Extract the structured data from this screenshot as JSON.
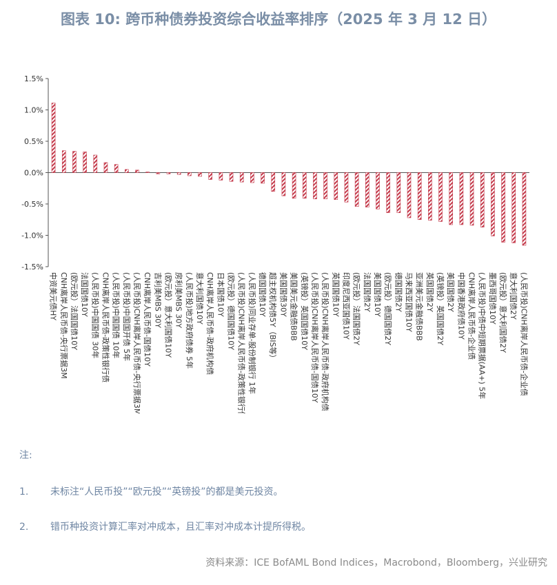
{
  "title": "图表 10: 跨币种债券投资综合收益率排序（2025 年 3 月 12 日）",
  "colors": {
    "title": "#7a8ea6",
    "bar": "#c43a4b",
    "bar_bg": "#ffffff",
    "note": "#6f86a3",
    "source": "#8a8a8a"
  },
  "chart_data": {
    "type": "bar",
    "title": "",
    "xlabel": "",
    "ylabel": "",
    "ylim": [
      -0.015,
      0.015
    ],
    "yticks": [
      0.015,
      0.01,
      0.005,
      0.0,
      -0.005,
      -0.01,
      -0.015
    ],
    "ytick_labels": [
      "1.5%",
      "1.0%",
      "0.5%",
      "0.0%",
      "-0.5%",
      "-1.0%",
      "-1.5%"
    ],
    "grid": false,
    "legend": "none",
    "categories": [
      "中资美元债HY",
      "CNH离岸人民币债-央行票据3M",
      "(欧元投）法国国债10Y",
      "法国国债10Y",
      "(人民币投)中国国债 30年",
      "CNH离岸人民币债-政策性银行债",
      "(人民币投)中国国债 10年",
      "(人民币投)中国国开债 5年",
      "(人民币投)CNH离岸人民币债-央行票据3M",
      "CNH离岸人民币债-国债10Y",
      "吉利美MBS 30Y",
      "(欧元投）意大利国债10Y",
      "房利美MBS 30Y",
      "(人民币投)地方政府债券 5年",
      "意大利国债10Y",
      "CNH离岸人民币债-政府机构债",
      "日本国债10Y",
      "(欧元投）德国国债10Y",
      "(人民币投)CNH离岸人民币债-政策性银行债",
      "(人民币投)同业存单-股份制银行 1年",
      "德国国债10Y",
      "超主权机构债5Y（BIS等）",
      "美国国债30Y",
      "美国美元金融债BBB",
      "(英镑投）英国国债10Y",
      "(人民币投)CNH离岸人民币债-国债10Y",
      "(人民币投)CNH离岸人民币债-政府机构债",
      "英国国债10Y",
      "印度尼西亚国债10Y",
      "(欧元投）法国国债2Y",
      "法国国债2Y",
      "美国国债10Y",
      "(欧元投）德国国债2Y",
      "德国国债2Y",
      "马来西亚国债10Y",
      "亚洲美元金融债BBB",
      "英国国债2Y",
      "(英镑投）英国国债2Y",
      "美国国债2Y",
      "中国香港政府债10Y",
      "CNH离岸人民币债-企业债",
      "(人民币投)中债中短期票据(AA+) 5年",
      "墨西哥国债10Y",
      "(欧元投）意大利国债2Y",
      "意大利国债2Y",
      "(人民币投)CNH离岸人民币债-企业债"
    ],
    "values": [
      0.0111,
      0.0035,
      0.0034,
      0.0033,
      0.0028,
      0.0016,
      0.0013,
      0.0005,
      0.0004,
      0.0001,
      -0.0002,
      -0.0002,
      -0.0003,
      -0.0005,
      -0.0006,
      -0.0011,
      -0.0012,
      -0.0014,
      -0.0015,
      -0.0016,
      -0.0017,
      -0.003,
      -0.0037,
      -0.0041,
      -0.0041,
      -0.0042,
      -0.0042,
      -0.0043,
      -0.0047,
      -0.0054,
      -0.0055,
      -0.0058,
      -0.0064,
      -0.0064,
      -0.0072,
      -0.0075,
      -0.0076,
      -0.0078,
      -0.0083,
      -0.0083,
      -0.0084,
      -0.0087,
      -0.0101,
      -0.0111,
      -0.0112,
      -0.0116
    ]
  },
  "notes": {
    "heading": "注:",
    "items": [
      {
        "num": "1.",
        "text": "未标注“人民币投”“欧元投”“英镑投”的都是美元投资。"
      },
      {
        "num": "2.",
        "text": "错币种投资计算汇率对冲成本，且汇率对冲成本计提所得税。"
      }
    ]
  },
  "source": "资料来源：ICE BofAML Bond Indices，Macrobond，Bloomberg，兴业研究"
}
